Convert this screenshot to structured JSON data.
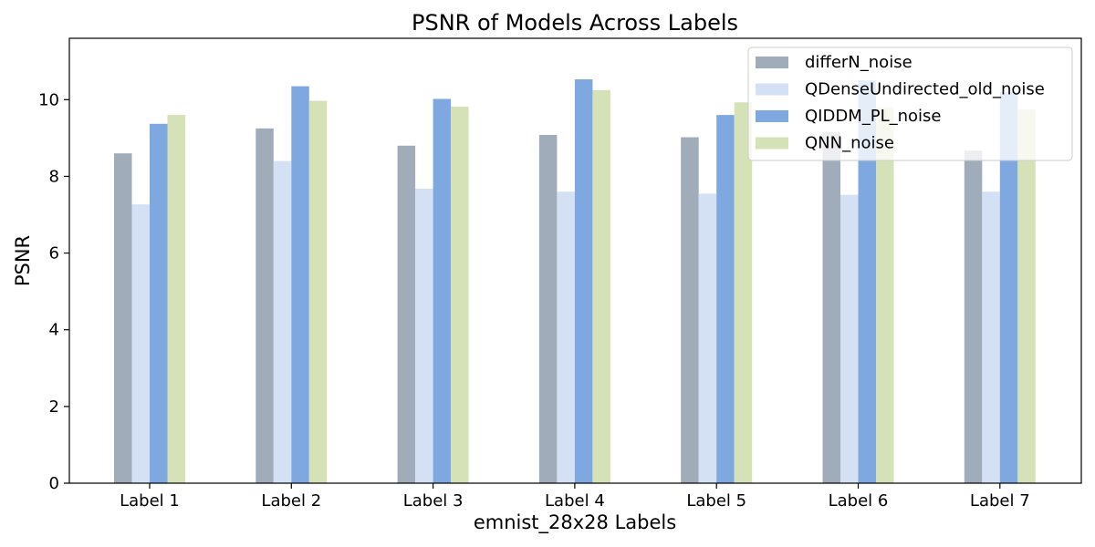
{
  "chart_data": {
    "type": "bar",
    "title": "PSNR of Models Across Labels",
    "xlabel": "emnist_28x28 Labels",
    "ylabel": "PSNR",
    "ylim": [
      0,
      11.6
    ],
    "yticks": [
      0,
      2,
      4,
      6,
      8,
      10
    ],
    "grid": false,
    "legend_position": "top-right",
    "categories": [
      "Label 1",
      "Label 2",
      "Label 3",
      "Label 4",
      "Label 5",
      "Label 6",
      "Label 7"
    ],
    "series": [
      {
        "name": "differN_noise",
        "color": "#a0acba",
        "values": [
          8.6,
          9.25,
          8.8,
          9.08,
          9.02,
          9.15,
          8.67
        ]
      },
      {
        "name": "QDenseUndirected_old_noise",
        "color": "#d4e0f4",
        "values": [
          7.27,
          8.4,
          7.68,
          7.6,
          7.55,
          7.52,
          7.6
        ]
      },
      {
        "name": "QIDDM_PL_noise",
        "color": "#7fa7e0",
        "values": [
          9.37,
          10.35,
          10.02,
          10.53,
          9.6,
          10.5,
          10.2
        ]
      },
      {
        "name": "QNN_noise",
        "color": "#d5e2b8",
        "values": [
          9.6,
          9.97,
          9.82,
          10.25,
          9.93,
          9.8,
          9.75
        ]
      }
    ]
  }
}
